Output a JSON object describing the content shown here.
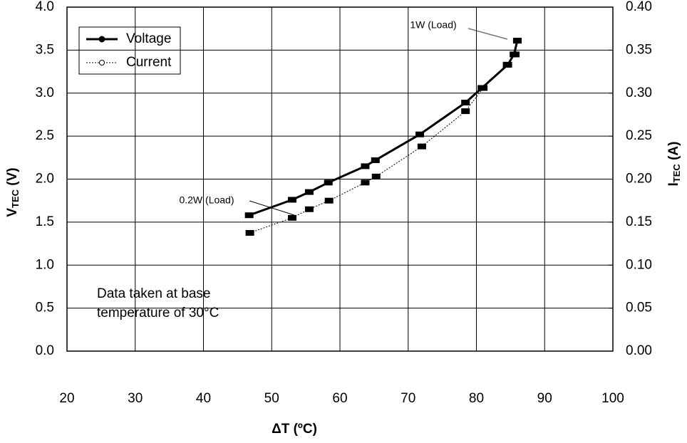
{
  "chart_data": {
    "type": "line",
    "x_label": "ΔT (ºC)",
    "y_label": "V",
    "y_label_sub": "TEC",
    "y_label_unit": " (V)",
    "y2_label": "I",
    "y2_label_sub": "TEC",
    "y2_label_unit": " (A)",
    "xlim": [
      20,
      100
    ],
    "xticks": [
      20,
      30,
      40,
      50,
      60,
      70,
      80,
      90,
      100
    ],
    "ylim": [
      0,
      4
    ],
    "yticks": [
      {
        "value": 0,
        "label": "0.0"
      },
      0.5,
      {
        "value": 1,
        "label": "1.0"
      },
      1.5,
      {
        "value": 2,
        "label": "2.0"
      },
      2.5,
      {
        "value": 3,
        "label": "3.0"
      },
      3.5,
      {
        "value": 4,
        "label": "4.0"
      }
    ],
    "y2lim": [
      0,
      0.4
    ],
    "y2ticks": [
      {
        "value": 0,
        "label": "0.00"
      },
      0.05,
      {
        "value": 0.1,
        "label": "0.10"
      },
      0.15,
      {
        "value": 0.2,
        "label": "0.20"
      },
      0.25,
      {
        "value": 0.3,
        "label": "0.30"
      },
      0.35,
      {
        "value": 0.4,
        "label": "0.40"
      }
    ],
    "grid": true,
    "legend": "upper left",
    "series": [
      {
        "name": "Voltage",
        "color": "#000000",
        "x": [
          46.7,
          53,
          55.5,
          58.3,
          63.7,
          65.2,
          71.7,
          78.4,
          80.8,
          84.6,
          85.5,
          86
        ],
        "values": [
          1.58,
          1.76,
          1.85,
          1.96,
          2.15,
          2.22,
          2.52,
          2.89,
          3.06,
          3.33,
          3.45,
          3.61
        ]
      },
      {
        "name": "Current",
        "color": "#000000",
        "axis": "y2",
        "x": [
          46.8,
          53,
          55.5,
          58.4,
          63.7,
          65.3,
          72,
          78.4,
          81,
          84.5,
          85.7,
          86
        ],
        "values": [
          0.1375,
          0.155,
          0.165,
          0.175,
          0.196,
          0.203,
          0.238,
          0.279,
          0.306,
          0.333,
          0.345,
          0.361
        ]
      }
    ],
    "annotations": [
      "1W (Load)",
      "0.2W (Load)",
      "Data taken at base",
      "temperature of 30°C"
    ]
  }
}
